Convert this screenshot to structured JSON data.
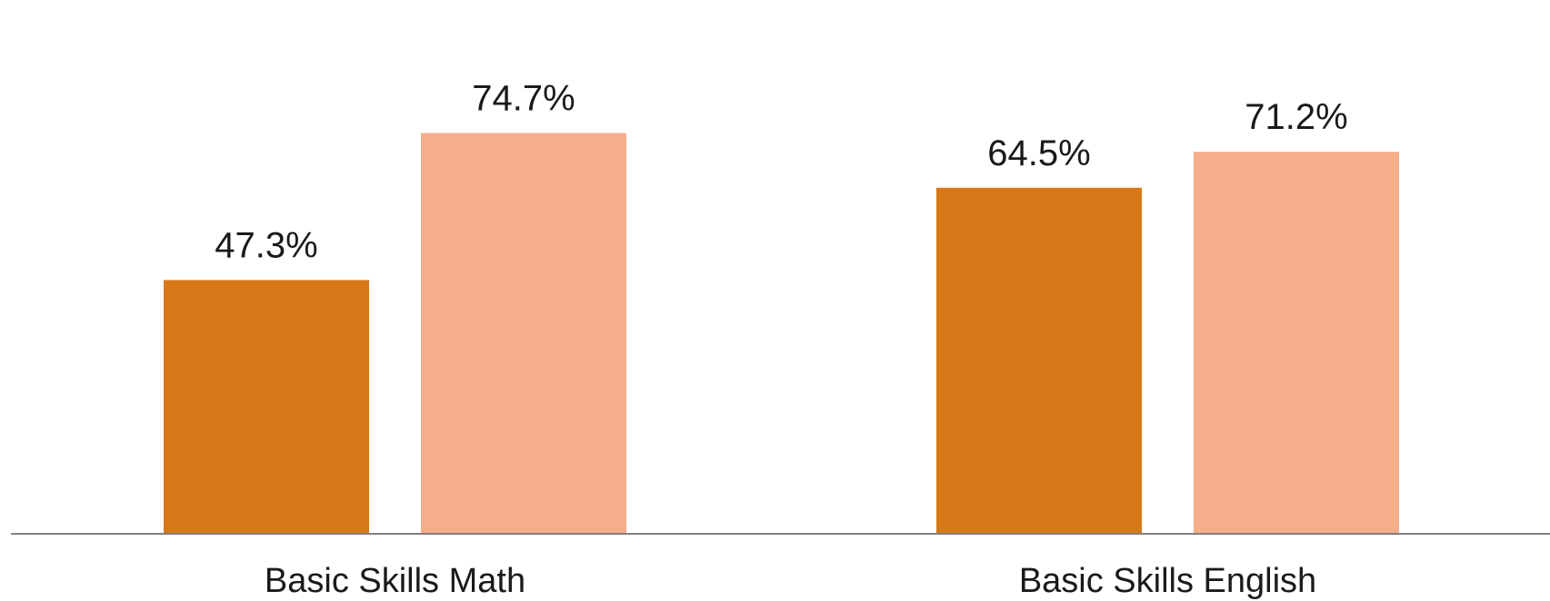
{
  "chart_data": {
    "type": "bar",
    "categories": [
      "Basic Skills Math",
      "Basic Skills English"
    ],
    "series": [
      {
        "values": [
          47.3,
          64.5
        ],
        "labels": [
          "47.3%",
          "64.5%"
        ],
        "color": "#d77918"
      },
      {
        "values": [
          74.7,
          71.2
        ],
        "labels": [
          "74.7%",
          "71.2%"
        ],
        "color": "#f6ad89"
      }
    ],
    "ylim": [
      0,
      80
    ],
    "grid": false,
    "legend": "none",
    "axis_color": "#7f7f7f"
  }
}
